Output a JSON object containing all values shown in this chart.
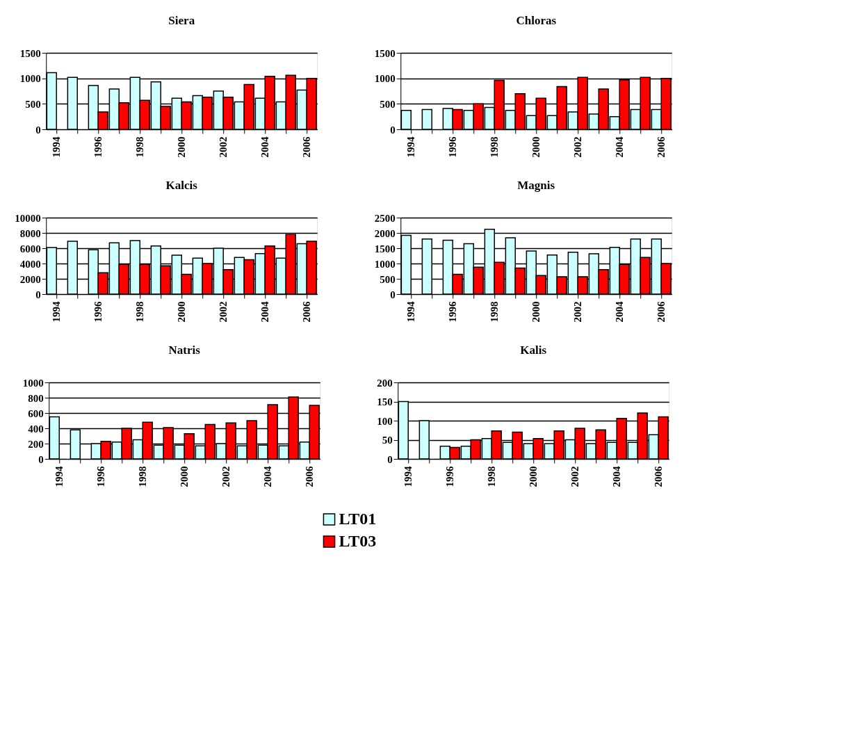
{
  "chart_data": [
    {
      "type": "bar",
      "title": "Siera",
      "categories": [
        "1994",
        null,
        "1996",
        null,
        "1998",
        null,
        "2000",
        null,
        "2002",
        null,
        "2004",
        null,
        "2006"
      ],
      "ylim": [
        0,
        1500
      ],
      "yticks": [
        0,
        500,
        1000,
        1500
      ],
      "grid": "y",
      "legend": "bottom",
      "series": [
        {
          "name": "LT01",
          "color": "#ccffff",
          "values": [
            1110,
            1020,
            860,
            790,
            1020,
            930,
            610,
            660,
            750,
            540,
            610,
            540,
            770
          ]
        },
        {
          "name": "LT03",
          "color": "#ff0000",
          "values": [
            null,
            null,
            340,
            520,
            570,
            450,
            540,
            630,
            630,
            880,
            1040,
            1060,
            1000
          ]
        }
      ]
    },
    {
      "type": "bar",
      "title": "Chloras",
      "categories": [
        "1994",
        null,
        "1996",
        null,
        "1998",
        null,
        "2000",
        null,
        "2002",
        null,
        "2004",
        null,
        "2006"
      ],
      "ylim": [
        0,
        1500
      ],
      "yticks": [
        0,
        500,
        1000,
        1500
      ],
      "grid": "y",
      "series": [
        {
          "name": "LT01",
          "color": "#ccffff",
          "values": [
            370,
            390,
            410,
            370,
            430,
            370,
            270,
            270,
            340,
            300,
            250,
            390,
            390
          ]
        },
        {
          "name": "LT03",
          "color": "#ff0000",
          "values": [
            null,
            null,
            390,
            500,
            960,
            700,
            610,
            840,
            1020,
            790,
            970,
            1020,
            1000
          ]
        }
      ]
    },
    {
      "type": "bar",
      "title": "Kalcis",
      "categories": [
        "1994",
        null,
        "1996",
        null,
        "1998",
        null,
        "2000",
        null,
        "2002",
        null,
        "2004",
        null,
        "2006"
      ],
      "ylim": [
        0,
        10000
      ],
      "yticks": [
        0,
        2000,
        4000,
        6000,
        8000,
        10000
      ],
      "grid": "y",
      "series": [
        {
          "name": "LT01",
          "color": "#ccffff",
          "values": [
            6100,
            6900,
            5800,
            6700,
            7000,
            6300,
            5100,
            4700,
            6000,
            4800,
            5300,
            4700,
            6600
          ]
        },
        {
          "name": "LT03",
          "color": "#ff0000",
          "values": [
            null,
            null,
            2800,
            3900,
            3900,
            3700,
            2600,
            4000,
            3200,
            4500,
            6300,
            7800,
            6900
          ]
        }
      ]
    },
    {
      "type": "bar",
      "title": "Magnis",
      "categories": [
        "1994",
        null,
        "1996",
        null,
        "1998",
        null,
        "2000",
        null,
        "2002",
        null,
        "2004",
        null,
        "2006"
      ],
      "ylim": [
        0,
        2500
      ],
      "yticks": [
        0,
        500,
        1000,
        1500,
        2000,
        2500
      ],
      "grid": "y",
      "series": [
        {
          "name": "LT01",
          "color": "#ccffff",
          "values": [
            1920,
            1800,
            1760,
            1650,
            2120,
            1840,
            1410,
            1280,
            1370,
            1320,
            1530,
            1800,
            1800
          ]
        },
        {
          "name": "LT03",
          "color": "#ff0000",
          "values": [
            null,
            null,
            650,
            880,
            1040,
            850,
            610,
            570,
            570,
            800,
            970,
            1200,
            1000
          ]
        }
      ]
    },
    {
      "type": "bar",
      "title": "Natris",
      "categories": [
        "1994",
        null,
        "1996",
        null,
        "1998",
        null,
        "2000",
        null,
        "2002",
        null,
        "2004",
        null,
        "2006"
      ],
      "ylim": [
        0,
        1000
      ],
      "yticks": [
        0,
        200,
        400,
        600,
        800,
        1000
      ],
      "grid": "y",
      "series": [
        {
          "name": "LT01",
          "color": "#ccffff",
          "values": [
            550,
            380,
            200,
            220,
            250,
            180,
            180,
            170,
            200,
            170,
            180,
            170,
            220
          ]
        },
        {
          "name": "LT03",
          "color": "#ff0000",
          "values": [
            null,
            null,
            230,
            400,
            480,
            410,
            330,
            450,
            470,
            500,
            710,
            810,
            700
          ]
        }
      ]
    },
    {
      "type": "bar",
      "title": "Kalis",
      "categories": [
        "1994",
        null,
        "1996",
        null,
        "1998",
        null,
        "2000",
        null,
        "2002",
        null,
        "2004",
        null,
        "2006"
      ],
      "ylim": [
        0,
        200
      ],
      "yticks": [
        0,
        50,
        100,
        150,
        200
      ],
      "grid": "y",
      "series": [
        {
          "name": "LT01",
          "color": "#ccffff",
          "values": [
            150,
            100,
            33,
            33,
            53,
            43,
            40,
            40,
            50,
            40,
            43,
            43,
            63
          ]
        },
        {
          "name": "LT03",
          "color": "#ff0000",
          "values": [
            null,
            null,
            30,
            50,
            73,
            70,
            53,
            73,
            80,
            76,
            106,
            120,
            110
          ]
        }
      ]
    }
  ]
}
